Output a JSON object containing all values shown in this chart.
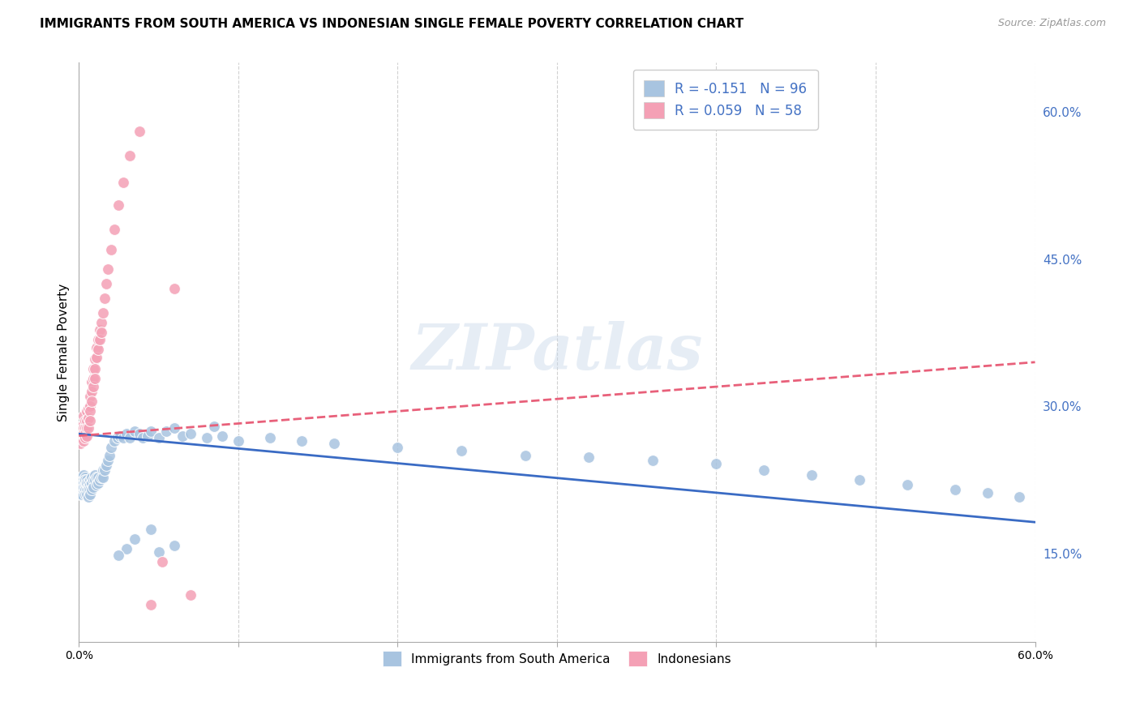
{
  "title": "IMMIGRANTS FROM SOUTH AMERICA VS INDONESIAN SINGLE FEMALE POVERTY CORRELATION CHART",
  "source": "Source: ZipAtlas.com",
  "ylabel": "Single Female Poverty",
  "right_yticks": [
    "15.0%",
    "30.0%",
    "45.0%",
    "60.0%"
  ],
  "right_ytick_vals": [
    0.15,
    0.3,
    0.45,
    0.6
  ],
  "legend_entry1": "R = -0.151   N = 96",
  "legend_entry2": "R = 0.059   N = 58",
  "color_blue": "#a8c4e0",
  "color_pink": "#f4a0b5",
  "line_color_blue": "#3a6bc4",
  "line_color_pink": "#e8607a",
  "watermark": "ZIPatlas",
  "xlim": [
    0.0,
    0.6
  ],
  "ylim": [
    0.06,
    0.65
  ],
  "legend_label1": "Immigrants from South America",
  "legend_label2": "Indonesians",
  "blue_x": [
    0.001,
    0.001,
    0.001,
    0.001,
    0.002,
    0.002,
    0.002,
    0.002,
    0.002,
    0.003,
    0.003,
    0.003,
    0.003,
    0.003,
    0.003,
    0.004,
    0.004,
    0.004,
    0.004,
    0.004,
    0.004,
    0.005,
    0.005,
    0.005,
    0.005,
    0.005,
    0.006,
    0.006,
    0.006,
    0.006,
    0.007,
    0.007,
    0.007,
    0.007,
    0.008,
    0.008,
    0.008,
    0.009,
    0.009,
    0.01,
    0.01,
    0.011,
    0.011,
    0.012,
    0.012,
    0.013,
    0.014,
    0.015,
    0.015,
    0.016,
    0.017,
    0.018,
    0.019,
    0.02,
    0.022,
    0.024,
    0.026,
    0.028,
    0.03,
    0.032,
    0.035,
    0.038,
    0.04,
    0.043,
    0.045,
    0.05,
    0.055,
    0.06,
    0.065,
    0.07,
    0.08,
    0.085,
    0.09,
    0.1,
    0.12,
    0.14,
    0.16,
    0.2,
    0.24,
    0.28,
    0.32,
    0.36,
    0.4,
    0.43,
    0.46,
    0.49,
    0.52,
    0.55,
    0.57,
    0.59,
    0.03,
    0.045,
    0.025,
    0.035,
    0.05,
    0.06
  ],
  "blue_y": [
    0.22,
    0.225,
    0.215,
    0.21,
    0.228,
    0.218,
    0.222,
    0.215,
    0.21,
    0.23,
    0.225,
    0.22,
    0.215,
    0.222,
    0.218,
    0.228,
    0.222,
    0.218,
    0.225,
    0.215,
    0.21,
    0.225,
    0.22,
    0.215,
    0.222,
    0.21,
    0.222,
    0.218,
    0.215,
    0.208,
    0.225,
    0.22,
    0.215,
    0.21,
    0.228,
    0.222,
    0.215,
    0.225,
    0.218,
    0.23,
    0.225,
    0.228,
    0.22,
    0.228,
    0.222,
    0.225,
    0.228,
    0.235,
    0.228,
    0.235,
    0.24,
    0.245,
    0.25,
    0.258,
    0.265,
    0.268,
    0.27,
    0.268,
    0.272,
    0.268,
    0.275,
    0.272,
    0.268,
    0.27,
    0.275,
    0.268,
    0.275,
    0.278,
    0.27,
    0.272,
    0.268,
    0.28,
    0.27,
    0.265,
    0.268,
    0.265,
    0.262,
    0.258,
    0.255,
    0.25,
    0.248,
    0.245,
    0.242,
    0.235,
    0.23,
    0.225,
    0.22,
    0.215,
    0.212,
    0.208,
    0.155,
    0.175,
    0.148,
    0.165,
    0.152,
    0.158
  ],
  "pink_x": [
    0.001,
    0.001,
    0.001,
    0.002,
    0.002,
    0.002,
    0.002,
    0.003,
    0.003,
    0.003,
    0.003,
    0.003,
    0.004,
    0.004,
    0.004,
    0.004,
    0.005,
    0.005,
    0.005,
    0.005,
    0.006,
    0.006,
    0.006,
    0.007,
    0.007,
    0.007,
    0.007,
    0.008,
    0.008,
    0.008,
    0.009,
    0.009,
    0.009,
    0.01,
    0.01,
    0.01,
    0.011,
    0.011,
    0.012,
    0.012,
    0.013,
    0.013,
    0.014,
    0.014,
    0.015,
    0.016,
    0.017,
    0.018,
    0.02,
    0.022,
    0.025,
    0.028,
    0.032,
    0.038,
    0.045,
    0.052,
    0.06,
    0.07
  ],
  "pink_y": [
    0.268,
    0.278,
    0.262,
    0.275,
    0.268,
    0.28,
    0.272,
    0.29,
    0.282,
    0.278,
    0.272,
    0.265,
    0.285,
    0.278,
    0.272,
    0.268,
    0.295,
    0.285,
    0.278,
    0.27,
    0.298,
    0.288,
    0.278,
    0.31,
    0.3,
    0.295,
    0.285,
    0.325,
    0.315,
    0.305,
    0.338,
    0.328,
    0.32,
    0.348,
    0.338,
    0.328,
    0.36,
    0.35,
    0.368,
    0.358,
    0.378,
    0.368,
    0.385,
    0.375,
    0.395,
    0.41,
    0.425,
    0.44,
    0.46,
    0.48,
    0.505,
    0.528,
    0.555,
    0.58,
    0.098,
    0.142,
    0.42,
    0.108
  ]
}
